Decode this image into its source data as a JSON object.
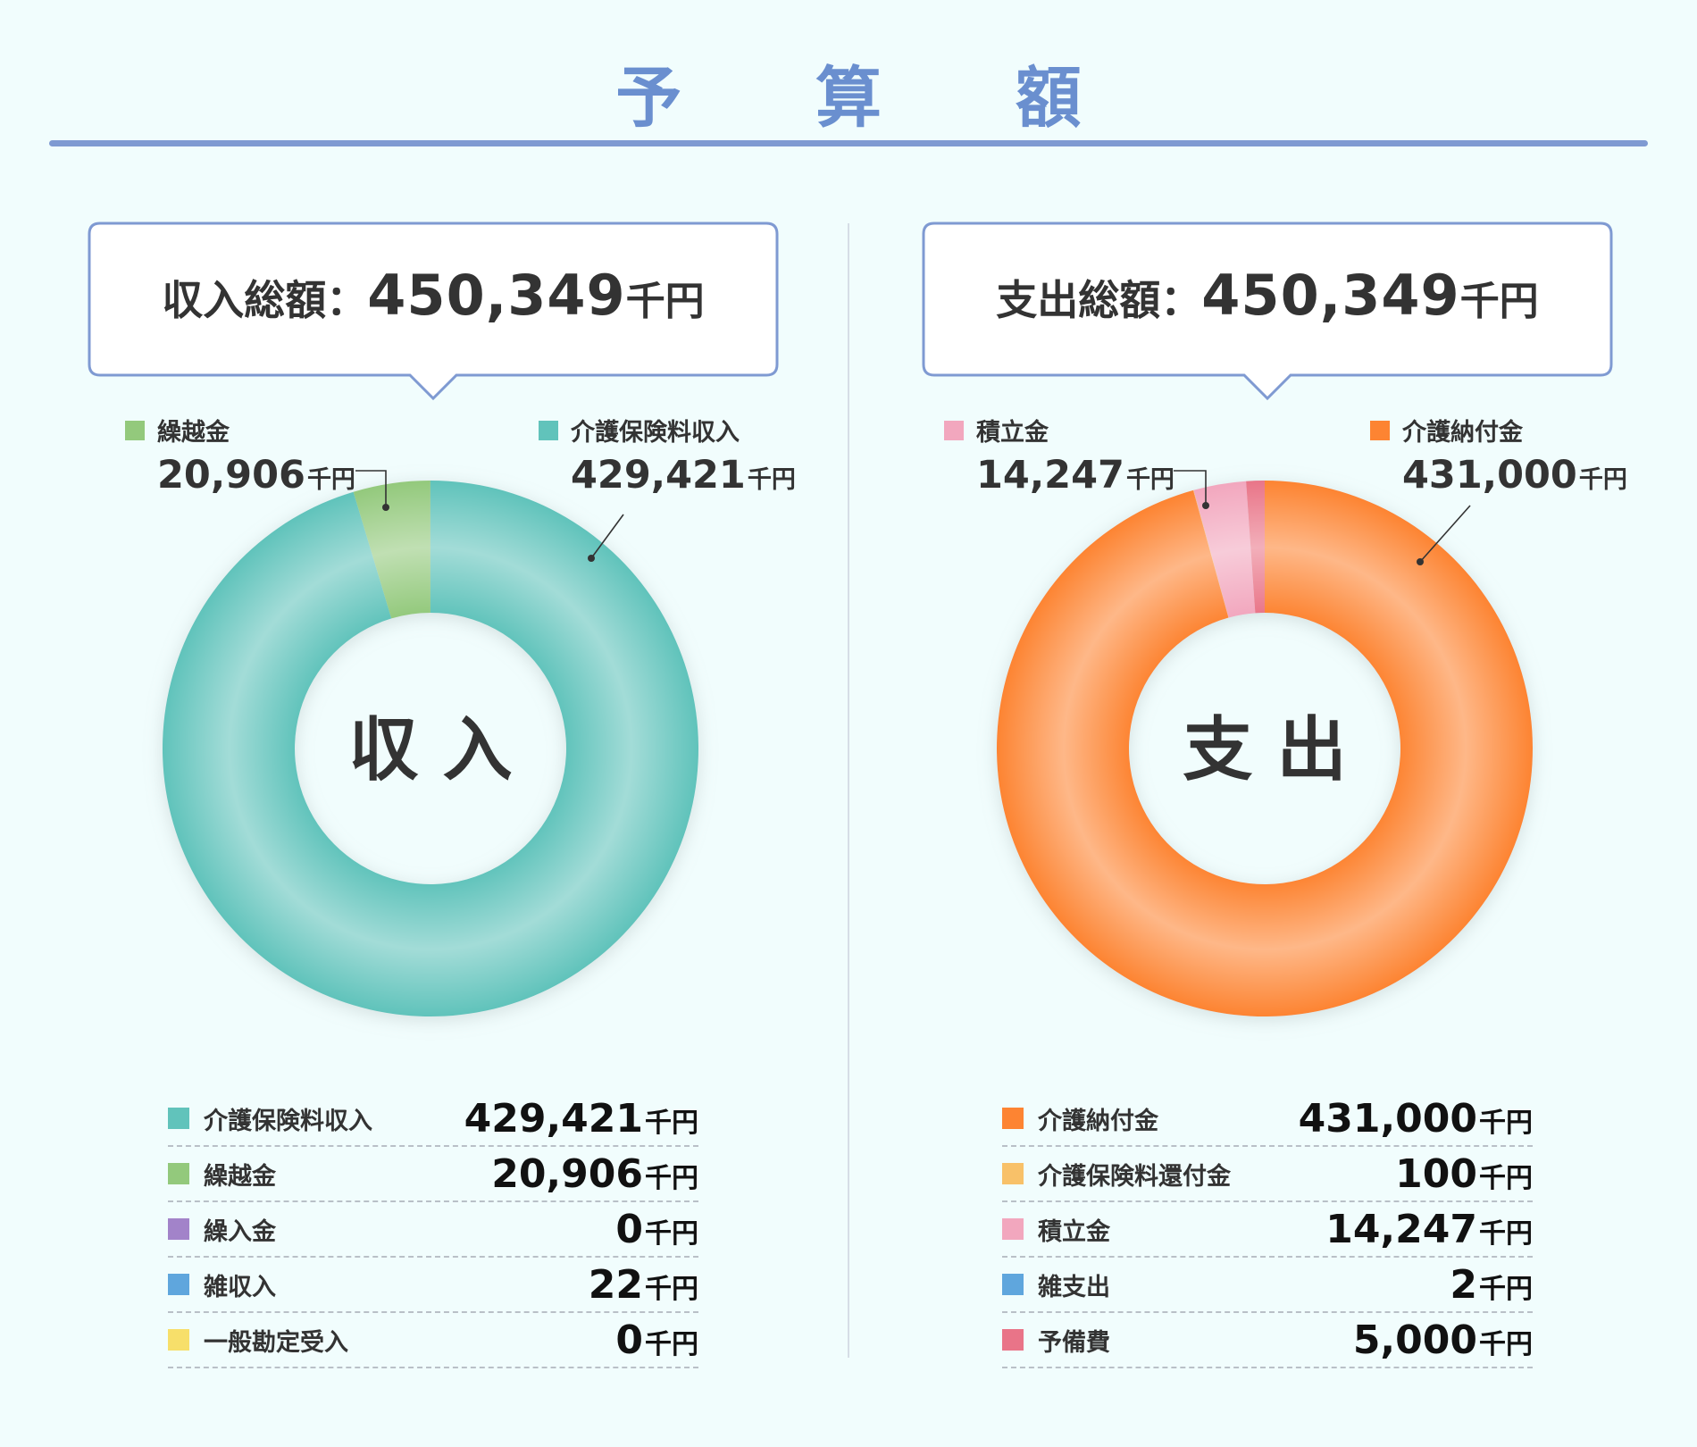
{
  "page": {
    "title": "予 算 額"
  },
  "colors": {
    "title": "#6a8fcf",
    "callout_border": "#7f9ad2"
  },
  "panels": [
    {
      "id": "income",
      "callout": {
        "label": "収入総額：",
        "value": "450,349",
        "unit": "千円"
      },
      "center_label": "収 入",
      "labels": [
        {
          "name": "繰越金",
          "value": "20,906",
          "unit": "千円",
          "color": "#93c97c"
        },
        {
          "name": "介護保険料収入",
          "value": "429,421",
          "unit": "千円",
          "color": "#61c3bb"
        }
      ],
      "legend": [
        {
          "name": "介護保険料収入",
          "value": "429,421",
          "unit": "千円",
          "color": "#61c3bb"
        },
        {
          "name": "繰越金",
          "value": "20,906",
          "unit": "千円",
          "color": "#93c97c"
        },
        {
          "name": "繰入金",
          "value": "0",
          "unit": "千円",
          "color": "#a283c9"
        },
        {
          "name": "雑収入",
          "value": "22",
          "unit": "千円",
          "color": "#5fa6dd"
        },
        {
          "name": "一般勘定受入",
          "value": "0",
          "unit": "千円",
          "color": "#f7df6a"
        }
      ]
    },
    {
      "id": "expense",
      "callout": {
        "label": "支出総額：",
        "value": "450,349",
        "unit": "千円"
      },
      "center_label": "支 出",
      "labels": [
        {
          "name": "積立金",
          "value": "14,247",
          "unit": "千円",
          "color": "#f2a7be"
        },
        {
          "name": "介護納付金",
          "value": "431,000",
          "unit": "千円",
          "color": "#fd8432"
        }
      ],
      "legend": [
        {
          "name": "介護納付金",
          "value": "431,000",
          "unit": "千円",
          "color": "#fd8432"
        },
        {
          "name": "介護保険料還付金",
          "value": "100",
          "unit": "千円",
          "color": "#f8c169"
        },
        {
          "name": "積立金",
          "value": "14,247",
          "unit": "千円",
          "color": "#f2a7be"
        },
        {
          "name": "雑支出",
          "value": "2",
          "unit": "千円",
          "color": "#5fa6dd"
        },
        {
          "name": "予備費",
          "value": "5,000",
          "unit": "千円",
          "color": "#e97488"
        }
      ]
    }
  ],
  "chart_data": [
    {
      "type": "pie",
      "title": "収入",
      "unit": "千円",
      "categories": [
        "介護保険料収入",
        "繰越金",
        "繰入金",
        "雑収入",
        "一般勘定受入"
      ],
      "values": [
        429421,
        20906,
        0,
        22,
        0
      ],
      "colors": [
        "#61c3bb",
        "#93c97c",
        "#a283c9",
        "#5fa6dd",
        "#f7df6a"
      ],
      "total": 450349
    },
    {
      "type": "pie",
      "title": "支出",
      "unit": "千円",
      "categories": [
        "介護納付金",
        "介護保険料還付金",
        "積立金",
        "雑支出",
        "予備費"
      ],
      "values": [
        431000,
        100,
        14247,
        2,
        5000
      ],
      "colors": [
        "#fd8432",
        "#f8c169",
        "#f2a7be",
        "#5fa6dd",
        "#e97488"
      ],
      "total": 450349
    }
  ]
}
